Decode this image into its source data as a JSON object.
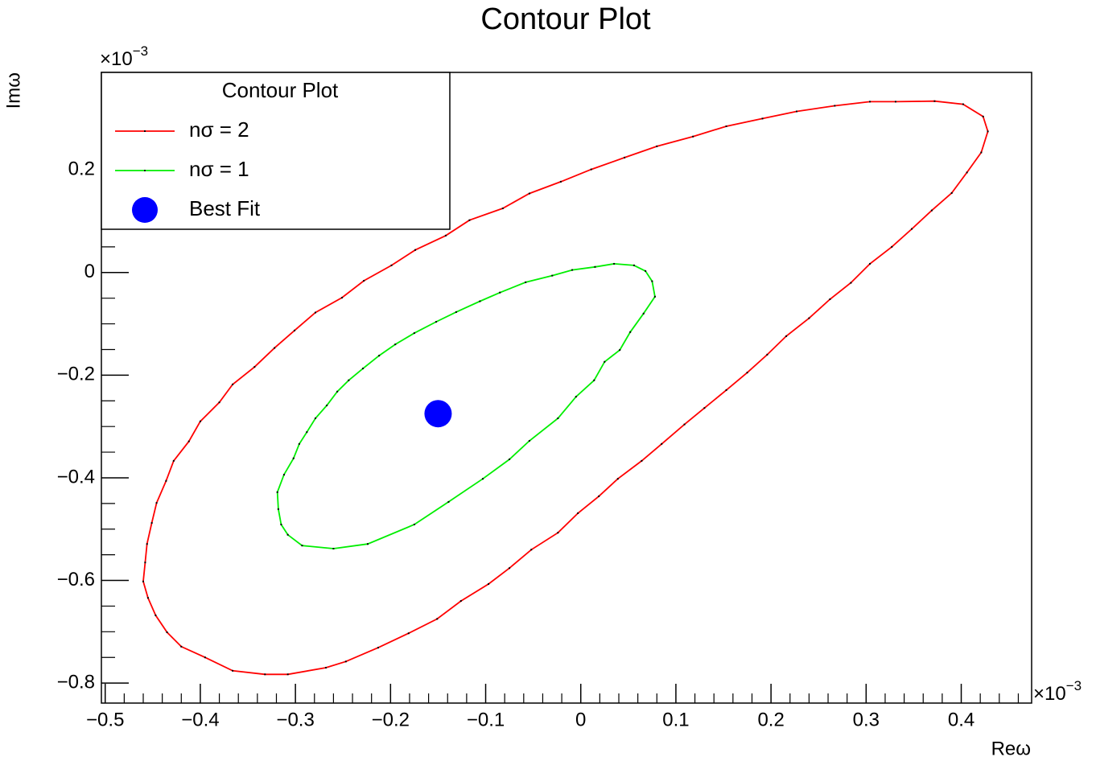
{
  "chart_data": {
    "type": "contour",
    "title": "Contour Plot",
    "x_label": "Reω",
    "y_label": "Imω",
    "x_multiplier": "×10",
    "x_exponent": "−3",
    "y_multiplier": "×10",
    "y_exponent": "−3",
    "xlim": [
      -0.504,
      0.474
    ],
    "ylim": [
      -0.839,
      0.39
    ],
    "xticks": [
      {
        "value": -0.5,
        "label": "−0.5"
      },
      {
        "value": -0.4,
        "label": "−0.4"
      },
      {
        "value": -0.3,
        "label": "−0.3"
      },
      {
        "value": -0.2,
        "label": "−0.2"
      },
      {
        "value": -0.1,
        "label": "−0.1"
      },
      0,
      0.1,
      0.2,
      0.3,
      0.4
    ],
    "yticks": [
      {
        "value": -0.8,
        "label": "−0.8"
      },
      {
        "value": -0.6,
        "label": "−0.6"
      },
      {
        "value": -0.4,
        "label": "−0.4"
      },
      {
        "value": -0.2,
        "label": "−0.2"
      },
      0,
      0.2
    ],
    "x_minor_divisions": 5,
    "y_minor_divisions": 4,
    "legend": {
      "title": "Contour Plot",
      "loc": "upper left"
    },
    "series": [
      {
        "name": "nσ = 2",
        "color": "#ff0000",
        "closed": true,
        "x": [
          0.428,
          0.421,
          0.406,
          0.39,
          0.369,
          0.348,
          0.327,
          0.304,
          0.284,
          0.262,
          0.24,
          0.216,
          0.196,
          0.175,
          0.153,
          0.13,
          0.109,
          0.085,
          0.064,
          0.039,
          0.019,
          -0.003,
          -0.024,
          -0.052,
          -0.075,
          -0.097,
          -0.126,
          -0.151,
          -0.181,
          -0.213,
          -0.247,
          -0.268,
          -0.308,
          -0.332,
          -0.366,
          -0.395,
          -0.42,
          -0.435,
          -0.447,
          -0.455,
          -0.46,
          -0.458,
          -0.456,
          -0.451,
          -0.446,
          -0.436,
          -0.428,
          -0.412,
          -0.4,
          -0.38,
          -0.366,
          -0.343,
          -0.322,
          -0.301,
          -0.279,
          -0.251,
          -0.228,
          -0.199,
          -0.174,
          -0.142,
          -0.117,
          -0.082,
          -0.054,
          -0.021,
          0.011,
          0.046,
          0.08,
          0.118,
          0.153,
          0.191,
          0.227,
          0.267,
          0.304,
          0.331,
          0.372,
          0.402,
          0.423
        ],
        "values": [
          0.275,
          0.234,
          0.195,
          0.155,
          0.121,
          0.085,
          0.05,
          0.017,
          -0.02,
          -0.052,
          -0.089,
          -0.124,
          -0.16,
          -0.195,
          -0.229,
          -0.264,
          -0.296,
          -0.334,
          -0.367,
          -0.402,
          -0.436,
          -0.469,
          -0.507,
          -0.54,
          -0.576,
          -0.607,
          -0.64,
          -0.675,
          -0.703,
          -0.731,
          -0.758,
          -0.77,
          -0.783,
          -0.783,
          -0.776,
          -0.75,
          -0.729,
          -0.701,
          -0.668,
          -0.634,
          -0.602,
          -0.565,
          -0.529,
          -0.488,
          -0.449,
          -0.406,
          -0.367,
          -0.329,
          -0.29,
          -0.253,
          -0.218,
          -0.184,
          -0.147,
          -0.113,
          -0.078,
          -0.049,
          -0.016,
          0.014,
          0.044,
          0.072,
          0.102,
          0.125,
          0.154,
          0.177,
          0.201,
          0.224,
          0.246,
          0.265,
          0.285,
          0.3,
          0.314,
          0.325,
          0.333,
          0.333,
          0.334,
          0.328,
          0.304
        ]
      },
      {
        "name": "nσ = 1",
        "color": "#00ee00",
        "closed": true,
        "x": [
          0.078,
          0.075,
          0.068,
          0.056,
          0.035,
          0.015,
          -0.009,
          -0.03,
          -0.058,
          -0.085,
          -0.106,
          -0.131,
          -0.152,
          -0.175,
          -0.195,
          -0.212,
          -0.229,
          -0.244,
          -0.256,
          -0.267,
          -0.279,
          -0.288,
          -0.296,
          -0.302,
          -0.312,
          -0.319,
          -0.318,
          -0.315,
          -0.308,
          -0.293,
          -0.26,
          -0.224,
          -0.175,
          -0.139,
          -0.103,
          -0.075,
          -0.054,
          -0.024,
          -0.005,
          0.014,
          0.025,
          0.041,
          0.052,
          0.066
        ],
        "values": [
          -0.047,
          -0.017,
          0.003,
          0.014,
          0.017,
          0.011,
          0.005,
          -0.006,
          -0.019,
          -0.039,
          -0.056,
          -0.077,
          -0.096,
          -0.118,
          -0.14,
          -0.162,
          -0.187,
          -0.21,
          -0.232,
          -0.259,
          -0.284,
          -0.311,
          -0.334,
          -0.362,
          -0.394,
          -0.428,
          -0.461,
          -0.491,
          -0.511,
          -0.532,
          -0.538,
          -0.529,
          -0.491,
          -0.447,
          -0.402,
          -0.364,
          -0.328,
          -0.284,
          -0.242,
          -0.21,
          -0.174,
          -0.151,
          -0.116,
          -0.08
        ]
      },
      {
        "name": "Best Fit",
        "color": "#0000ff",
        "marker": "circle",
        "x": [
          -0.15
        ],
        "values": [
          -0.275
        ]
      }
    ]
  }
}
